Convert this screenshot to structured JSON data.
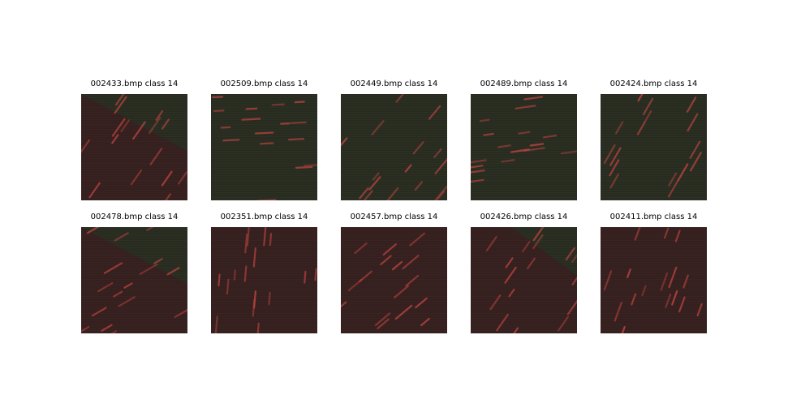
{
  "figure": {
    "tiles": [
      {
        "filename": "002433.bmp",
        "label": "class 14"
      },
      {
        "filename": "002509.bmp",
        "label": "class 14"
      },
      {
        "filename": "002449.bmp",
        "label": "class 14"
      },
      {
        "filename": "002489.bmp",
        "label": "class 14"
      },
      {
        "filename": "002424.bmp",
        "label": "class 14"
      },
      {
        "filename": "002478.bmp",
        "label": "class 14"
      },
      {
        "filename": "002351.bmp",
        "label": "class 14"
      },
      {
        "filename": "002457.bmp",
        "label": "class 14"
      },
      {
        "filename": "002426.bmp",
        "label": "class 14"
      },
      {
        "filename": "002411.bmp",
        "label": "class 14"
      }
    ]
  },
  "colors": {
    "green_fabric": "#2c3124",
    "red_fabric": "#3a2322",
    "streak": "#b8433f"
  }
}
